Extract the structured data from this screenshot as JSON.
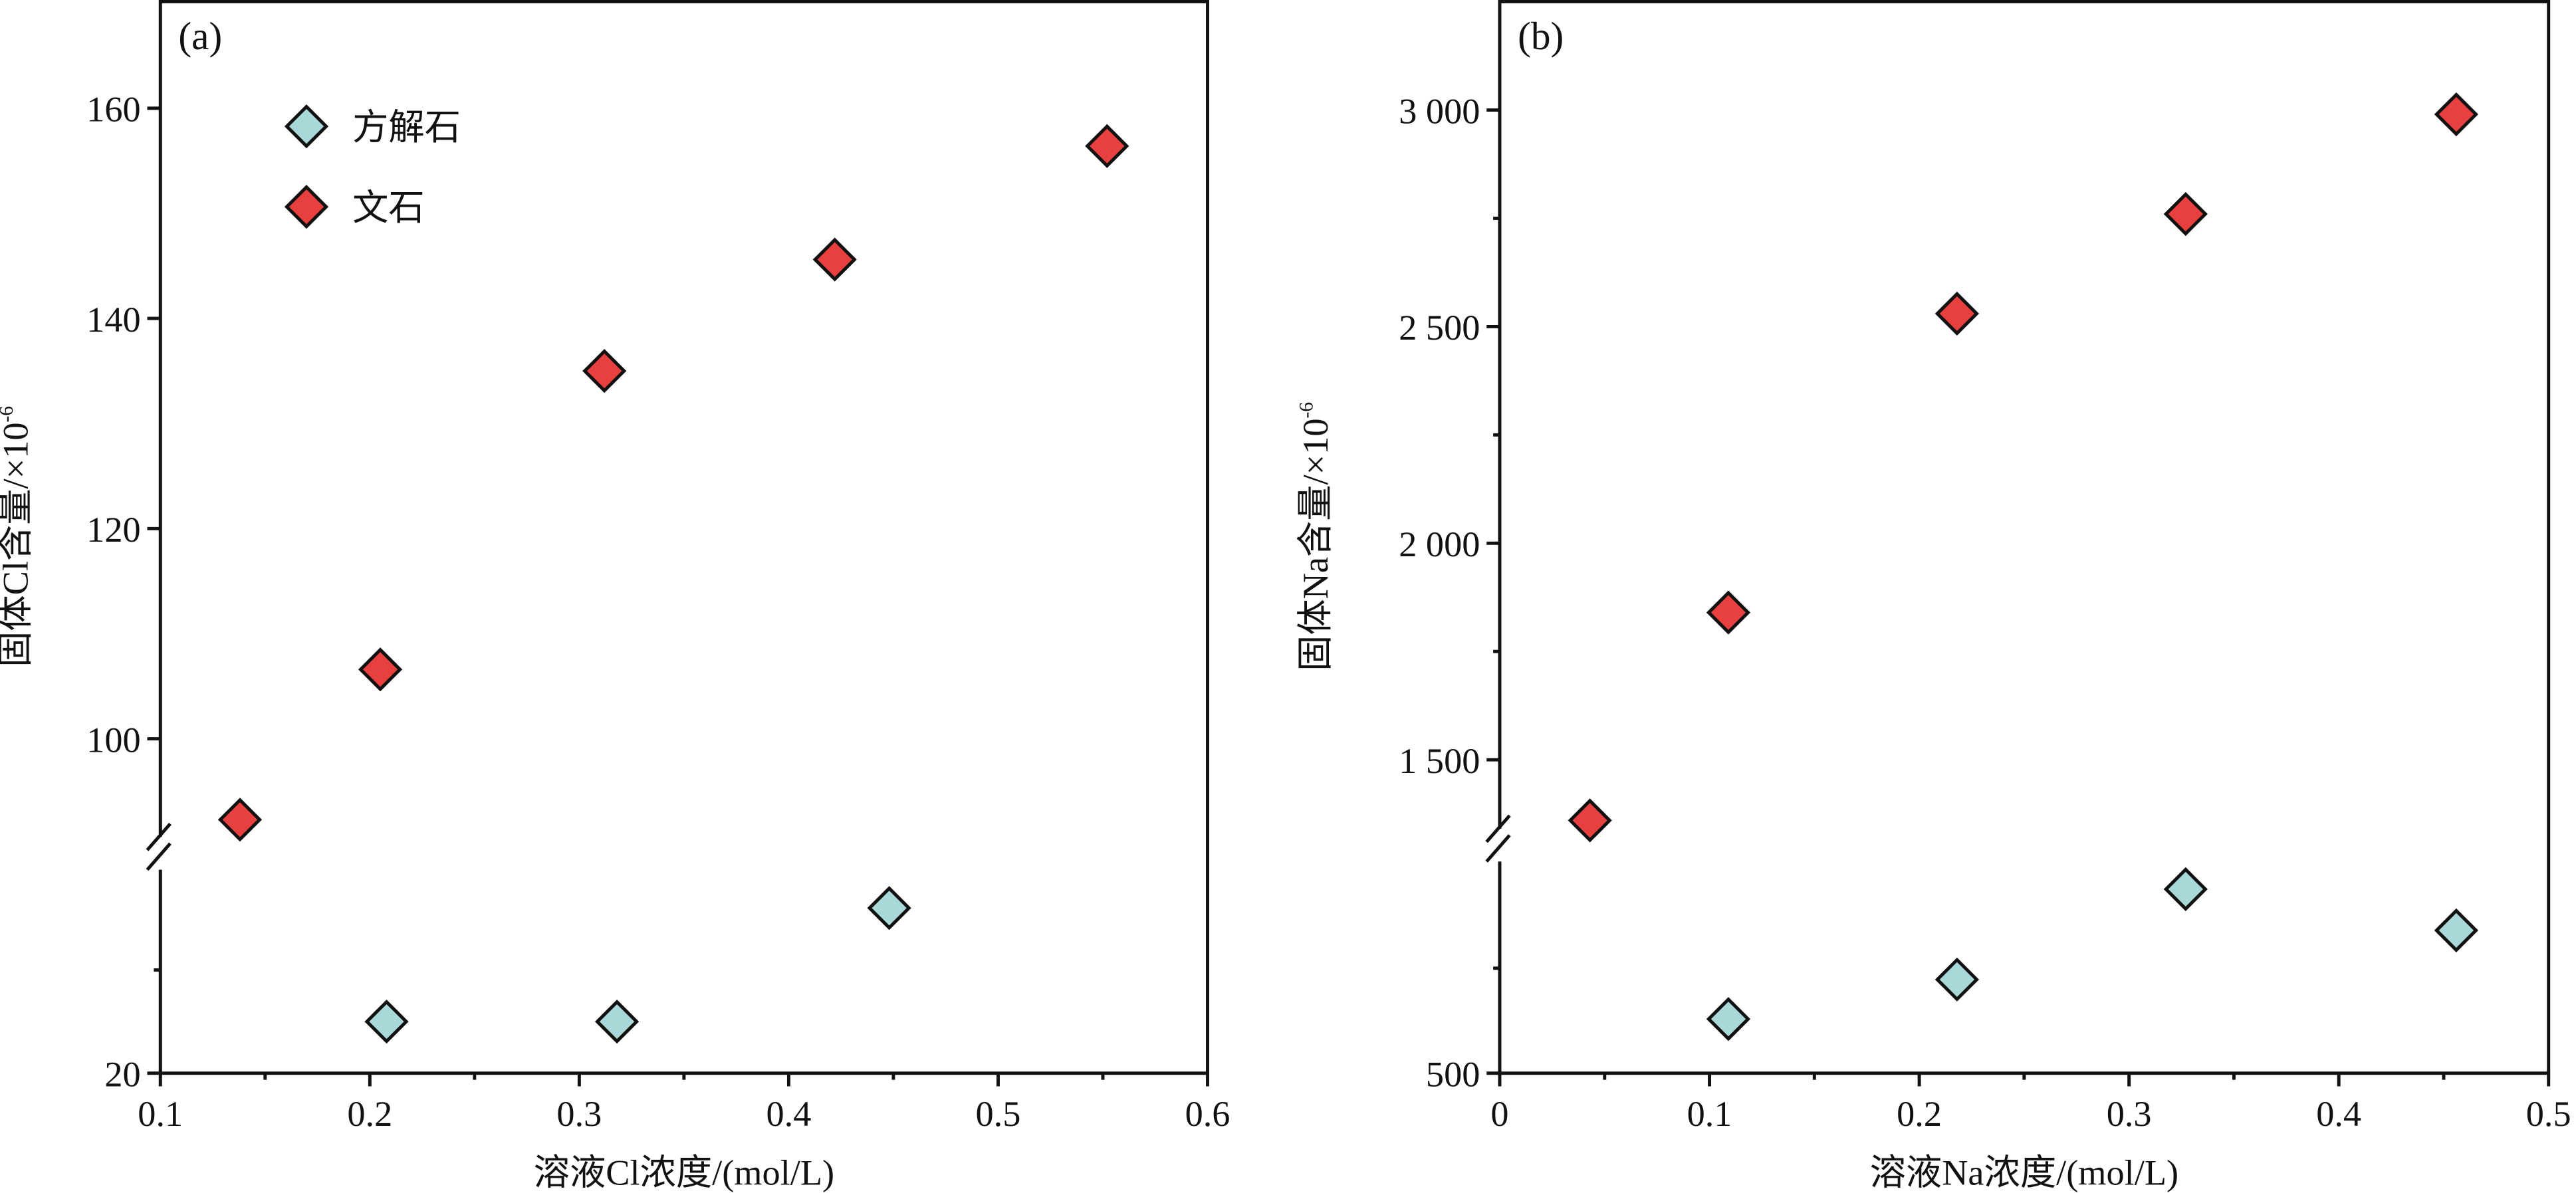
{
  "chart_data": [
    {
      "type": "scatter",
      "panel_label": "(a)",
      "xlabel": "溶液Cl浓度/(mol/L)",
      "ylabel": "固体Cl含量/×10",
      "ylabel_sup": "-6",
      "xlim": [
        0.1,
        0.6
      ],
      "x_ticks": [
        "0.1",
        "0.2",
        "0.3",
        "0.4",
        "0.5",
        "0.6"
      ],
      "x_tick_values": [
        0.1,
        0.2,
        0.3,
        0.4,
        0.5,
        0.6
      ],
      "x_minor": [
        0.15,
        0.25,
        0.35,
        0.45,
        0.55
      ],
      "y_axis_break": true,
      "y_segments": [
        {
          "range": [
            20,
            41.3
          ],
          "ticks": [
            20
          ],
          "tick_labels": [
            "20"
          ],
          "minor": [
            30
          ]
        },
        {
          "range": [
            89.1,
            170.3
          ],
          "ticks": [
            100,
            120,
            140,
            160
          ],
          "tick_labels": [
            "100",
            "120",
            "140",
            "160"
          ],
          "minor": []
        }
      ],
      "legend": {
        "placement": "top-left",
        "entries": [
          "方解石",
          "文石"
        ]
      },
      "series": [
        {
          "name": "方解石",
          "color": "#a8d8d8",
          "x": [
            0.208,
            0.318,
            0.448
          ],
          "y": [
            25,
            25,
            36
          ]
        },
        {
          "name": "文石",
          "color": "#e8403f",
          "x": [
            0.138,
            0.205,
            0.312,
            0.422,
            0.552
          ],
          "y": [
            92.3,
            106.6,
            135,
            145.6,
            156.4
          ]
        }
      ]
    },
    {
      "type": "scatter",
      "panel_label": "(b)",
      "xlabel": "溶液Na浓度/(mol/L)",
      "ylabel": "固体Na含量/×10",
      "ylabel_sup": "-6",
      "xlim": [
        0,
        0.5
      ],
      "x_ticks": [
        "0",
        "0.1",
        "0.2",
        "0.3",
        "0.4",
        "0.5"
      ],
      "x_tick_values": [
        0,
        0.1,
        0.2,
        0.3,
        0.4,
        0.5
      ],
      "x_minor": [
        0.05,
        0.15,
        0.25,
        0.35,
        0.45
      ],
      "y_axis_break": true,
      "y_segments": [
        {
          "range": [
            500,
            1043
          ],
          "ticks": [
            500
          ],
          "tick_labels": [
            "500"
          ],
          "minor": [
            750
          ]
        },
        {
          "range": [
            1303,
            3254
          ],
          "ticks": [
            1500,
            2000,
            2500,
            3000
          ],
          "tick_labels": [
            "1 500",
            "2 000",
            "2 500",
            "3 000"
          ],
          "minor": [
            1750,
            2250,
            2750
          ]
        }
      ],
      "series": [
        {
          "name": "方解石",
          "color": "#a8d8d8",
          "x": [
            0.109,
            0.218,
            0.327,
            0.456
          ],
          "y": [
            629,
            723,
            938,
            840
          ]
        },
        {
          "name": "文石",
          "color": "#e8403f",
          "x": [
            0.043,
            0.109,
            0.218,
            0.327,
            0.456
          ],
          "y": [
            1360,
            1840,
            2530,
            2760,
            2990
          ]
        }
      ]
    }
  ]
}
